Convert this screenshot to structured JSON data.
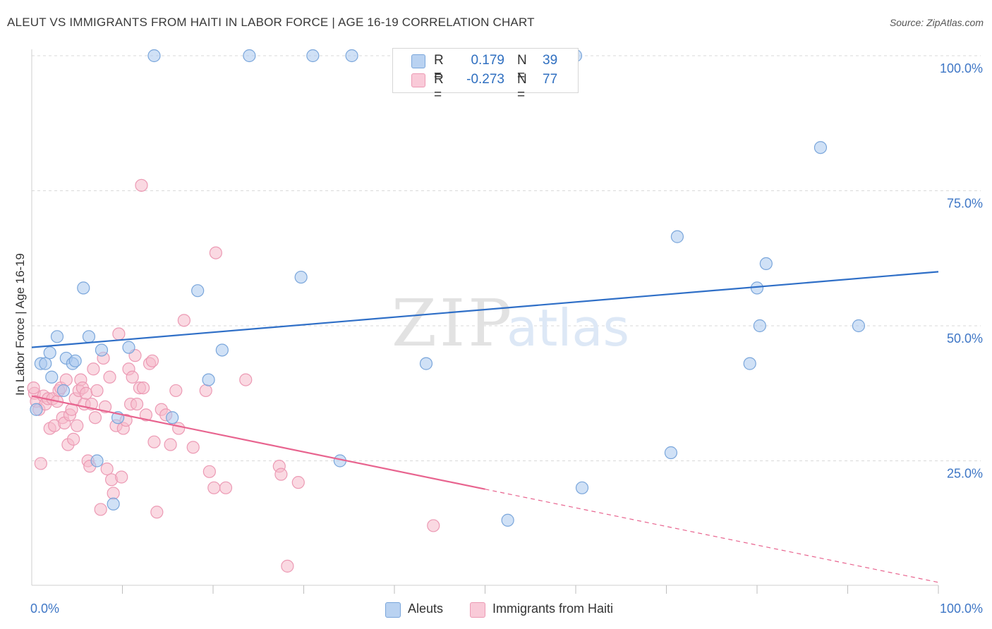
{
  "title": "ALEUT VS IMMIGRANTS FROM HAITI IN LABOR FORCE | AGE 16-19 CORRELATION CHART",
  "source": "Source: ZipAtlas.com",
  "watermark": {
    "zip": "ZIP",
    "atlas": "atlas"
  },
  "legend": {
    "rows": [
      {
        "r_label": "R =",
        "r_value": "0.179",
        "n_label": "N =",
        "n_value": "39"
      },
      {
        "r_label": "R =",
        "r_value": "-0.273",
        "n_label": "N =",
        "n_value": "77"
      }
    ]
  },
  "bottom_legend": [
    "Aleuts",
    "Immigrants from Haiti"
  ],
  "colors": {
    "blue_fill": "#a9c8ee",
    "blue_stroke": "#7aa6db",
    "blue_line": "#2f6fc7",
    "pink_fill": "#f6b9cb",
    "pink_stroke": "#ec9ab4",
    "pink_line": "#e8648f",
    "grid": "#d9d9d9",
    "axis_label": "#3f77c6"
  },
  "chart_data": {
    "type": "scatter",
    "title": "ALEUT VS IMMIGRANTS FROM HAITI IN LABOR FORCE | AGE 16-19 CORRELATION CHART",
    "xlabel": "",
    "ylabel": "In Labor Force | Age 16-19",
    "xlim": [
      0,
      100
    ],
    "ylim": [
      0,
      105
    ],
    "x_tick_labels": [
      "0.0%",
      "100.0%"
    ],
    "y_tick_labels": [
      "25.0%",
      "50.0%",
      "75.0%",
      "100.0%"
    ],
    "y_ticks": [
      25,
      50,
      75,
      100
    ],
    "series": [
      {
        "name": "Aleuts",
        "r": 0.179,
        "n": 39,
        "trend": {
          "x0": 0,
          "y0": 46.0,
          "x1": 100,
          "y1": 60.0,
          "solid_to": 100
        },
        "points": [
          [
            0.5,
            34.5
          ],
          [
            1.0,
            43.0
          ],
          [
            1.5,
            43.0
          ],
          [
            2.0,
            45.0
          ],
          [
            2.2,
            40.5
          ],
          [
            2.8,
            48.0
          ],
          [
            3.5,
            38.0
          ],
          [
            3.8,
            44.0
          ],
          [
            4.5,
            43.0
          ],
          [
            4.8,
            43.5
          ],
          [
            5.7,
            57.0
          ],
          [
            6.3,
            48.0
          ],
          [
            7.2,
            25.0
          ],
          [
            7.7,
            45.5
          ],
          [
            9.0,
            17.0
          ],
          [
            9.5,
            33.0
          ],
          [
            10.7,
            46.0
          ],
          [
            13.5,
            100.0
          ],
          [
            15.5,
            33.0
          ],
          [
            18.3,
            56.5
          ],
          [
            19.5,
            40.0
          ],
          [
            21.0,
            45.5
          ],
          [
            24.0,
            100.0
          ],
          [
            29.7,
            59.0
          ],
          [
            31.0,
            100.0
          ],
          [
            35.3,
            100.0
          ],
          [
            34.0,
            25.0
          ],
          [
            43.5,
            43.0
          ],
          [
            52.5,
            14.0
          ],
          [
            60.0,
            100.0
          ],
          [
            60.7,
            20.0
          ],
          [
            70.5,
            26.5
          ],
          [
            71.2,
            66.5
          ],
          [
            79.2,
            43.0
          ],
          [
            80.0,
            57.0
          ],
          [
            80.3,
            50.0
          ],
          [
            81.0,
            61.5
          ],
          [
            87.0,
            83.0
          ],
          [
            91.2,
            50.0
          ]
        ]
      },
      {
        "name": "Immigrants from Haiti",
        "r": -0.273,
        "n": 77,
        "trend": {
          "x0": 0,
          "y0": 37.0,
          "x1": 100,
          "y1": 2.5,
          "solid_to": 50
        },
        "points": [
          [
            0.3,
            37.5
          ],
          [
            0.5,
            36.0
          ],
          [
            0.8,
            34.5
          ],
          [
            1.0,
            24.5
          ],
          [
            1.3,
            37.0
          ],
          [
            1.5,
            35.5
          ],
          [
            1.8,
            36.5
          ],
          [
            2.0,
            31.0
          ],
          [
            2.3,
            36.5
          ],
          [
            2.5,
            31.5
          ],
          [
            2.8,
            36.0
          ],
          [
            3.0,
            38.0
          ],
          [
            3.2,
            38.5
          ],
          [
            3.4,
            33.0
          ],
          [
            3.6,
            32.0
          ],
          [
            3.8,
            40.0
          ],
          [
            4.0,
            28.0
          ],
          [
            4.2,
            33.5
          ],
          [
            4.4,
            34.5
          ],
          [
            4.6,
            29.0
          ],
          [
            4.8,
            36.5
          ],
          [
            5.0,
            31.5
          ],
          [
            5.2,
            38.0
          ],
          [
            5.4,
            40.0
          ],
          [
            5.6,
            38.5
          ],
          [
            5.8,
            35.5
          ],
          [
            6.0,
            37.5
          ],
          [
            6.2,
            25.0
          ],
          [
            6.4,
            24.0
          ],
          [
            6.6,
            35.5
          ],
          [
            6.8,
            42.0
          ],
          [
            7.0,
            33.0
          ],
          [
            7.2,
            38.0
          ],
          [
            7.6,
            16.0
          ],
          [
            7.9,
            44.0
          ],
          [
            8.1,
            35.0
          ],
          [
            8.3,
            23.5
          ],
          [
            8.6,
            40.5
          ],
          [
            8.8,
            21.5
          ],
          [
            9.0,
            19.0
          ],
          [
            9.3,
            31.5
          ],
          [
            9.6,
            48.5
          ],
          [
            9.9,
            22.0
          ],
          [
            10.1,
            31.0
          ],
          [
            10.4,
            32.5
          ],
          [
            10.7,
            42.0
          ],
          [
            10.9,
            35.5
          ],
          [
            11.1,
            40.5
          ],
          [
            11.4,
            44.5
          ],
          [
            11.6,
            35.5
          ],
          [
            11.9,
            38.5
          ],
          [
            12.1,
            76.0
          ],
          [
            12.3,
            38.5
          ],
          [
            12.6,
            33.5
          ],
          [
            13.0,
            43.0
          ],
          [
            13.3,
            43.5
          ],
          [
            13.5,
            28.5
          ],
          [
            13.8,
            15.5
          ],
          [
            14.3,
            34.5
          ],
          [
            14.8,
            33.5
          ],
          [
            15.3,
            28.0
          ],
          [
            15.9,
            38.0
          ],
          [
            16.2,
            31.0
          ],
          [
            16.8,
            51.0
          ],
          [
            17.8,
            27.5
          ],
          [
            19.2,
            38.0
          ],
          [
            19.6,
            23.0
          ],
          [
            20.1,
            20.0
          ],
          [
            20.3,
            63.5
          ],
          [
            21.4,
            20.0
          ],
          [
            23.6,
            40.0
          ],
          [
            27.3,
            24.0
          ],
          [
            27.5,
            22.5
          ],
          [
            28.2,
            5.5
          ],
          [
            29.4,
            21.0
          ],
          [
            44.3,
            13.0
          ],
          [
            0.2,
            38.5
          ]
        ]
      }
    ]
  }
}
